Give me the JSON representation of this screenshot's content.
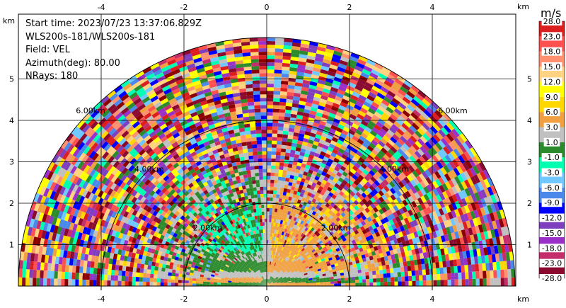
{
  "info": {
    "start_time": "Start time: 2023/07/23 13:37:06.829Z",
    "sites": "WLS200s-181/WLS200s-181",
    "field": "Field: VEL",
    "azimuth": "Azimuth(deg): 80.00",
    "nrays": "NRays: 180"
  },
  "chart_data": {
    "type": "heatmap",
    "title": "",
    "x_axis": {
      "label": "km",
      "range": [
        -6,
        6
      ],
      "ticks": [
        -4,
        -2,
        0,
        2,
        4
      ]
    },
    "y_axis": {
      "label": "km",
      "range": [
        0,
        6
      ],
      "ticks": [
        1,
        2,
        3,
        4,
        5
      ]
    },
    "range_rings_km": [
      2,
      4,
      6
    ],
    "range_ring_labels": [
      "2.00km",
      "4.00km",
      "6.00km"
    ],
    "max_range_km": 6.0,
    "grid": true,
    "colorbar": {
      "unit": "m/s",
      "tick_labels": [
        "-28.0",
        "-23.0",
        "-18.0",
        "-15.0",
        "-12.0",
        "-9.0",
        "-6.0",
        "-3.0",
        "-1.0",
        "1.0",
        "3.0",
        "6.0",
        "9.0",
        "12.0",
        "15.0",
        "18.0",
        "23.0",
        "28.0"
      ],
      "colors": [
        "#8b0a30",
        "#c42f6b",
        "#9b30c8",
        "#7e3fbe",
        "#0000ff",
        "#4a88ea",
        "#6fc8ff",
        "#00ffb0",
        "#2b8a2b",
        "#c0c0c0",
        "#f0a040",
        "#ffd700",
        "#ffff00",
        "#ffd27f",
        "#ff9070",
        "#ff5050",
        "#dc1e1e",
        "#8b0000"
      ]
    }
  }
}
